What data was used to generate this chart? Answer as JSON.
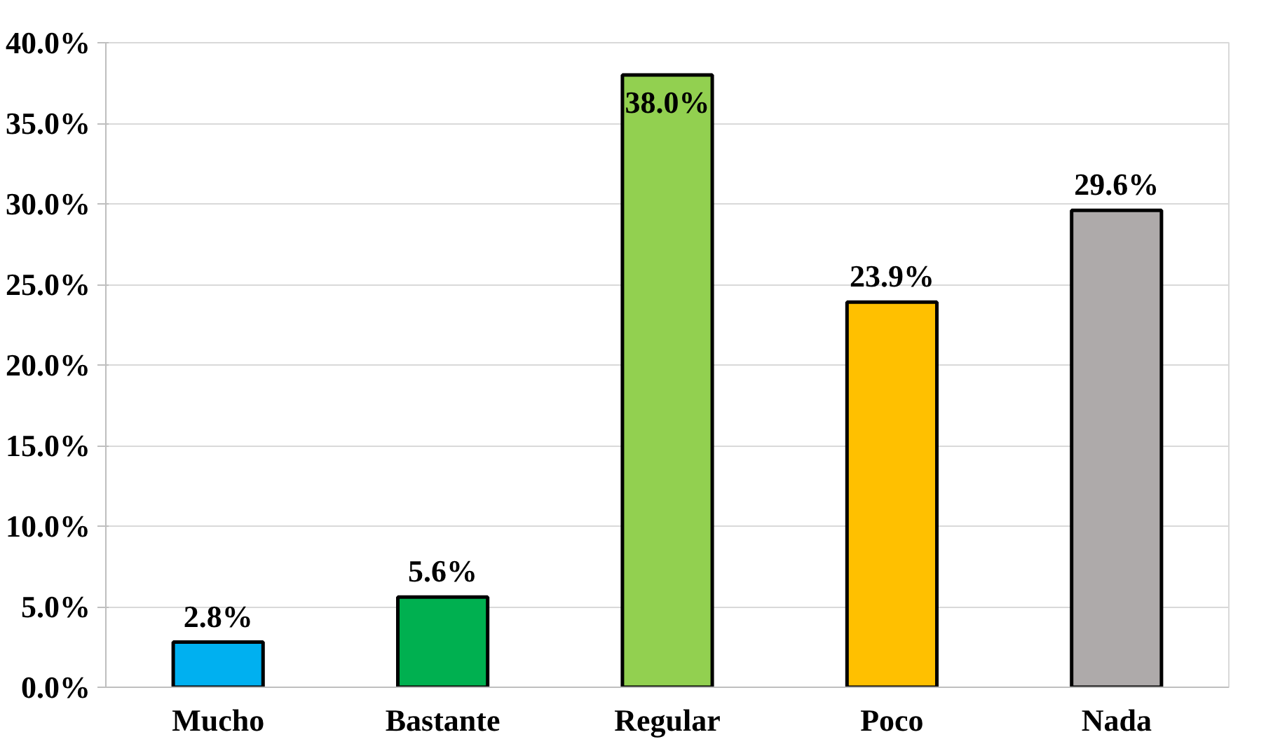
{
  "chart_data": {
    "type": "bar",
    "categories": [
      "Mucho",
      "Bastante",
      "Regular",
      "Poco",
      "Nada"
    ],
    "values": [
      2.8,
      5.6,
      38.0,
      23.9,
      29.6
    ],
    "colors": [
      "#00b0f0",
      "#00b050",
      "#92d050",
      "#ffc000",
      "#aeaaaa"
    ],
    "ylim": [
      0,
      40
    ],
    "yticks": [
      {
        "value": 0,
        "label": "0.0%"
      },
      {
        "value": 5,
        "label": "5.0%"
      },
      {
        "value": 10,
        "label": "10.0%"
      },
      {
        "value": 15,
        "label": "15.0%"
      },
      {
        "value": 20,
        "label": "20.0%"
      },
      {
        "value": 25,
        "label": "25.0%"
      },
      {
        "value": 30,
        "label": "30.0%"
      },
      {
        "value": 35,
        "label": "35.0%"
      },
      {
        "value": 40,
        "label": "40.0%"
      }
    ],
    "value_labels": [
      "2.8%",
      "5.6%",
      "38.0%",
      "23.9%",
      "29.6%"
    ],
    "grid": "y"
  }
}
